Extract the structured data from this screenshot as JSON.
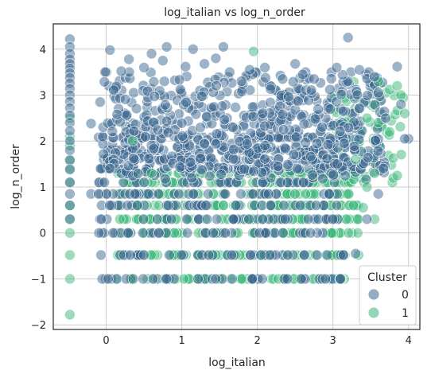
{
  "chart_data": {
    "type": "scatter",
    "title": "log_italian vs log_n_order",
    "xlabel": "log_italian",
    "ylabel": "log_n_order",
    "xlim": [
      -0.7,
      4.15
    ],
    "ylim": [
      -2.1,
      4.55
    ],
    "xticks": [
      0,
      1,
      2,
      3,
      4
    ],
    "yticks": [
      -2,
      -1,
      0,
      1,
      2,
      3,
      4
    ],
    "grid": true,
    "legend": {
      "title": "Cluster",
      "placement": "lower-right",
      "entries": [
        {
          "label": "0",
          "color": "#3b6790"
        },
        {
          "label": "1",
          "color": "#3bb77a"
        }
      ]
    },
    "series": [
      {
        "name": "0",
        "color": "#3b6790",
        "points": [
          [
            -0.48,
            4.22
          ],
          [
            -0.48,
            4.05
          ],
          [
            -0.48,
            3.9
          ],
          [
            -0.48,
            3.78
          ],
          [
            -0.48,
            3.68
          ],
          [
            -0.48,
            3.58
          ],
          [
            -0.48,
            3.48
          ],
          [
            -0.48,
            3.38
          ],
          [
            -0.48,
            3.26
          ],
          [
            -0.48,
            3.14
          ],
          [
            -0.48,
            3.0
          ],
          [
            -0.48,
            2.86
          ],
          [
            -0.48,
            2.72
          ],
          [
            -0.48,
            2.56
          ],
          [
            -0.48,
            2.4
          ],
          [
            -0.48,
            2.22
          ],
          [
            -0.48,
            2.0
          ],
          [
            -0.48,
            1.8
          ],
          [
            -0.48,
            1.58
          ],
          [
            -0.48,
            1.38
          ],
          [
            -0.48,
            1.1
          ],
          [
            -0.48,
            0.85
          ],
          [
            -0.48,
            0.6
          ],
          [
            -0.48,
            0.3
          ],
          [
            -0.2,
            0.85
          ],
          [
            -0.1,
            0.85
          ],
          [
            -0.2,
            2.38
          ],
          [
            -0.08,
            2.85
          ],
          [
            0.05,
            3.98
          ],
          [
            0.2,
            3.52
          ],
          [
            0.3,
            3.78
          ],
          [
            0.5,
            3.6
          ],
          [
            0.6,
            3.9
          ],
          [
            0.75,
            3.75
          ],
          [
            0.8,
            4.05
          ],
          [
            1.05,
            3.62
          ],
          [
            1.15,
            4.0
          ],
          [
            1.3,
            3.68
          ],
          [
            1.45,
            3.8
          ],
          [
            1.55,
            4.05
          ],
          [
            1.9,
            3.55
          ],
          [
            2.1,
            3.6
          ],
          [
            2.5,
            3.68
          ],
          [
            2.6,
            3.45
          ],
          [
            2.75,
            3.35
          ],
          [
            3.05,
            3.6
          ],
          [
            3.2,
            4.25
          ],
          [
            3.35,
            3.55
          ],
          [
            3.55,
            3.4
          ],
          [
            3.85,
            3.62
          ],
          [
            3.7,
            2.5
          ],
          [
            3.9,
            2.8
          ],
          [
            4.0,
            2.05
          ],
          [
            3.6,
            0.85
          ],
          [
            3.45,
            0.3
          ],
          [
            3.3,
            -0.45
          ],
          [
            3.1,
            -1.0
          ],
          [
            2.9,
            -1.0
          ],
          [
            3.95,
            2.05
          ],
          [
            3.6,
            3.05
          ]
        ],
        "band_levels": [
          -1.0,
          -0.48,
          0.0,
          0.3,
          0.6,
          0.85,
          1.1,
          1.4,
          1.6,
          1.8,
          2.08
        ],
        "band_range": [
          0.0,
          3.15
        ]
      },
      {
        "name": "1",
        "color": "#3bb77a",
        "points": [
          [
            -0.48,
            -1.78
          ],
          [
            -0.48,
            -1.0
          ],
          [
            -0.48,
            -0.48
          ],
          [
            -0.48,
            0.0
          ],
          [
            -0.48,
            0.3
          ],
          [
            -0.48,
            0.6
          ],
          [
            -0.48,
            1.1
          ],
          [
            -0.48,
            1.4
          ],
          [
            -0.48,
            1.6
          ],
          [
            -0.48,
            1.9
          ],
          [
            -0.48,
            2.1
          ],
          [
            -0.48,
            2.5
          ],
          [
            1.95,
            3.95
          ],
          [
            3.6,
            3.3
          ],
          [
            3.75,
            3.12
          ],
          [
            3.85,
            3.2
          ],
          [
            3.9,
            3.0
          ],
          [
            3.95,
            2.6
          ],
          [
            3.85,
            1.25
          ],
          [
            3.55,
            0.3
          ],
          [
            3.4,
            0.55
          ],
          [
            3.75,
            2.2
          ],
          [
            3.6,
            2.4
          ],
          [
            3.45,
            2.5
          ],
          [
            3.3,
            1.6
          ],
          [
            3.45,
            1.0
          ],
          [
            3.55,
            1.3
          ],
          [
            0.35,
            2.0
          ],
          [
            0.6,
            1.3
          ]
        ],
        "band_levels": [
          -1.0,
          -0.48,
          0.0,
          0.3,
          0.6,
          0.85,
          1.1,
          1.3
        ],
        "band_range": [
          0.15,
          3.35
        ]
      }
    ]
  }
}
